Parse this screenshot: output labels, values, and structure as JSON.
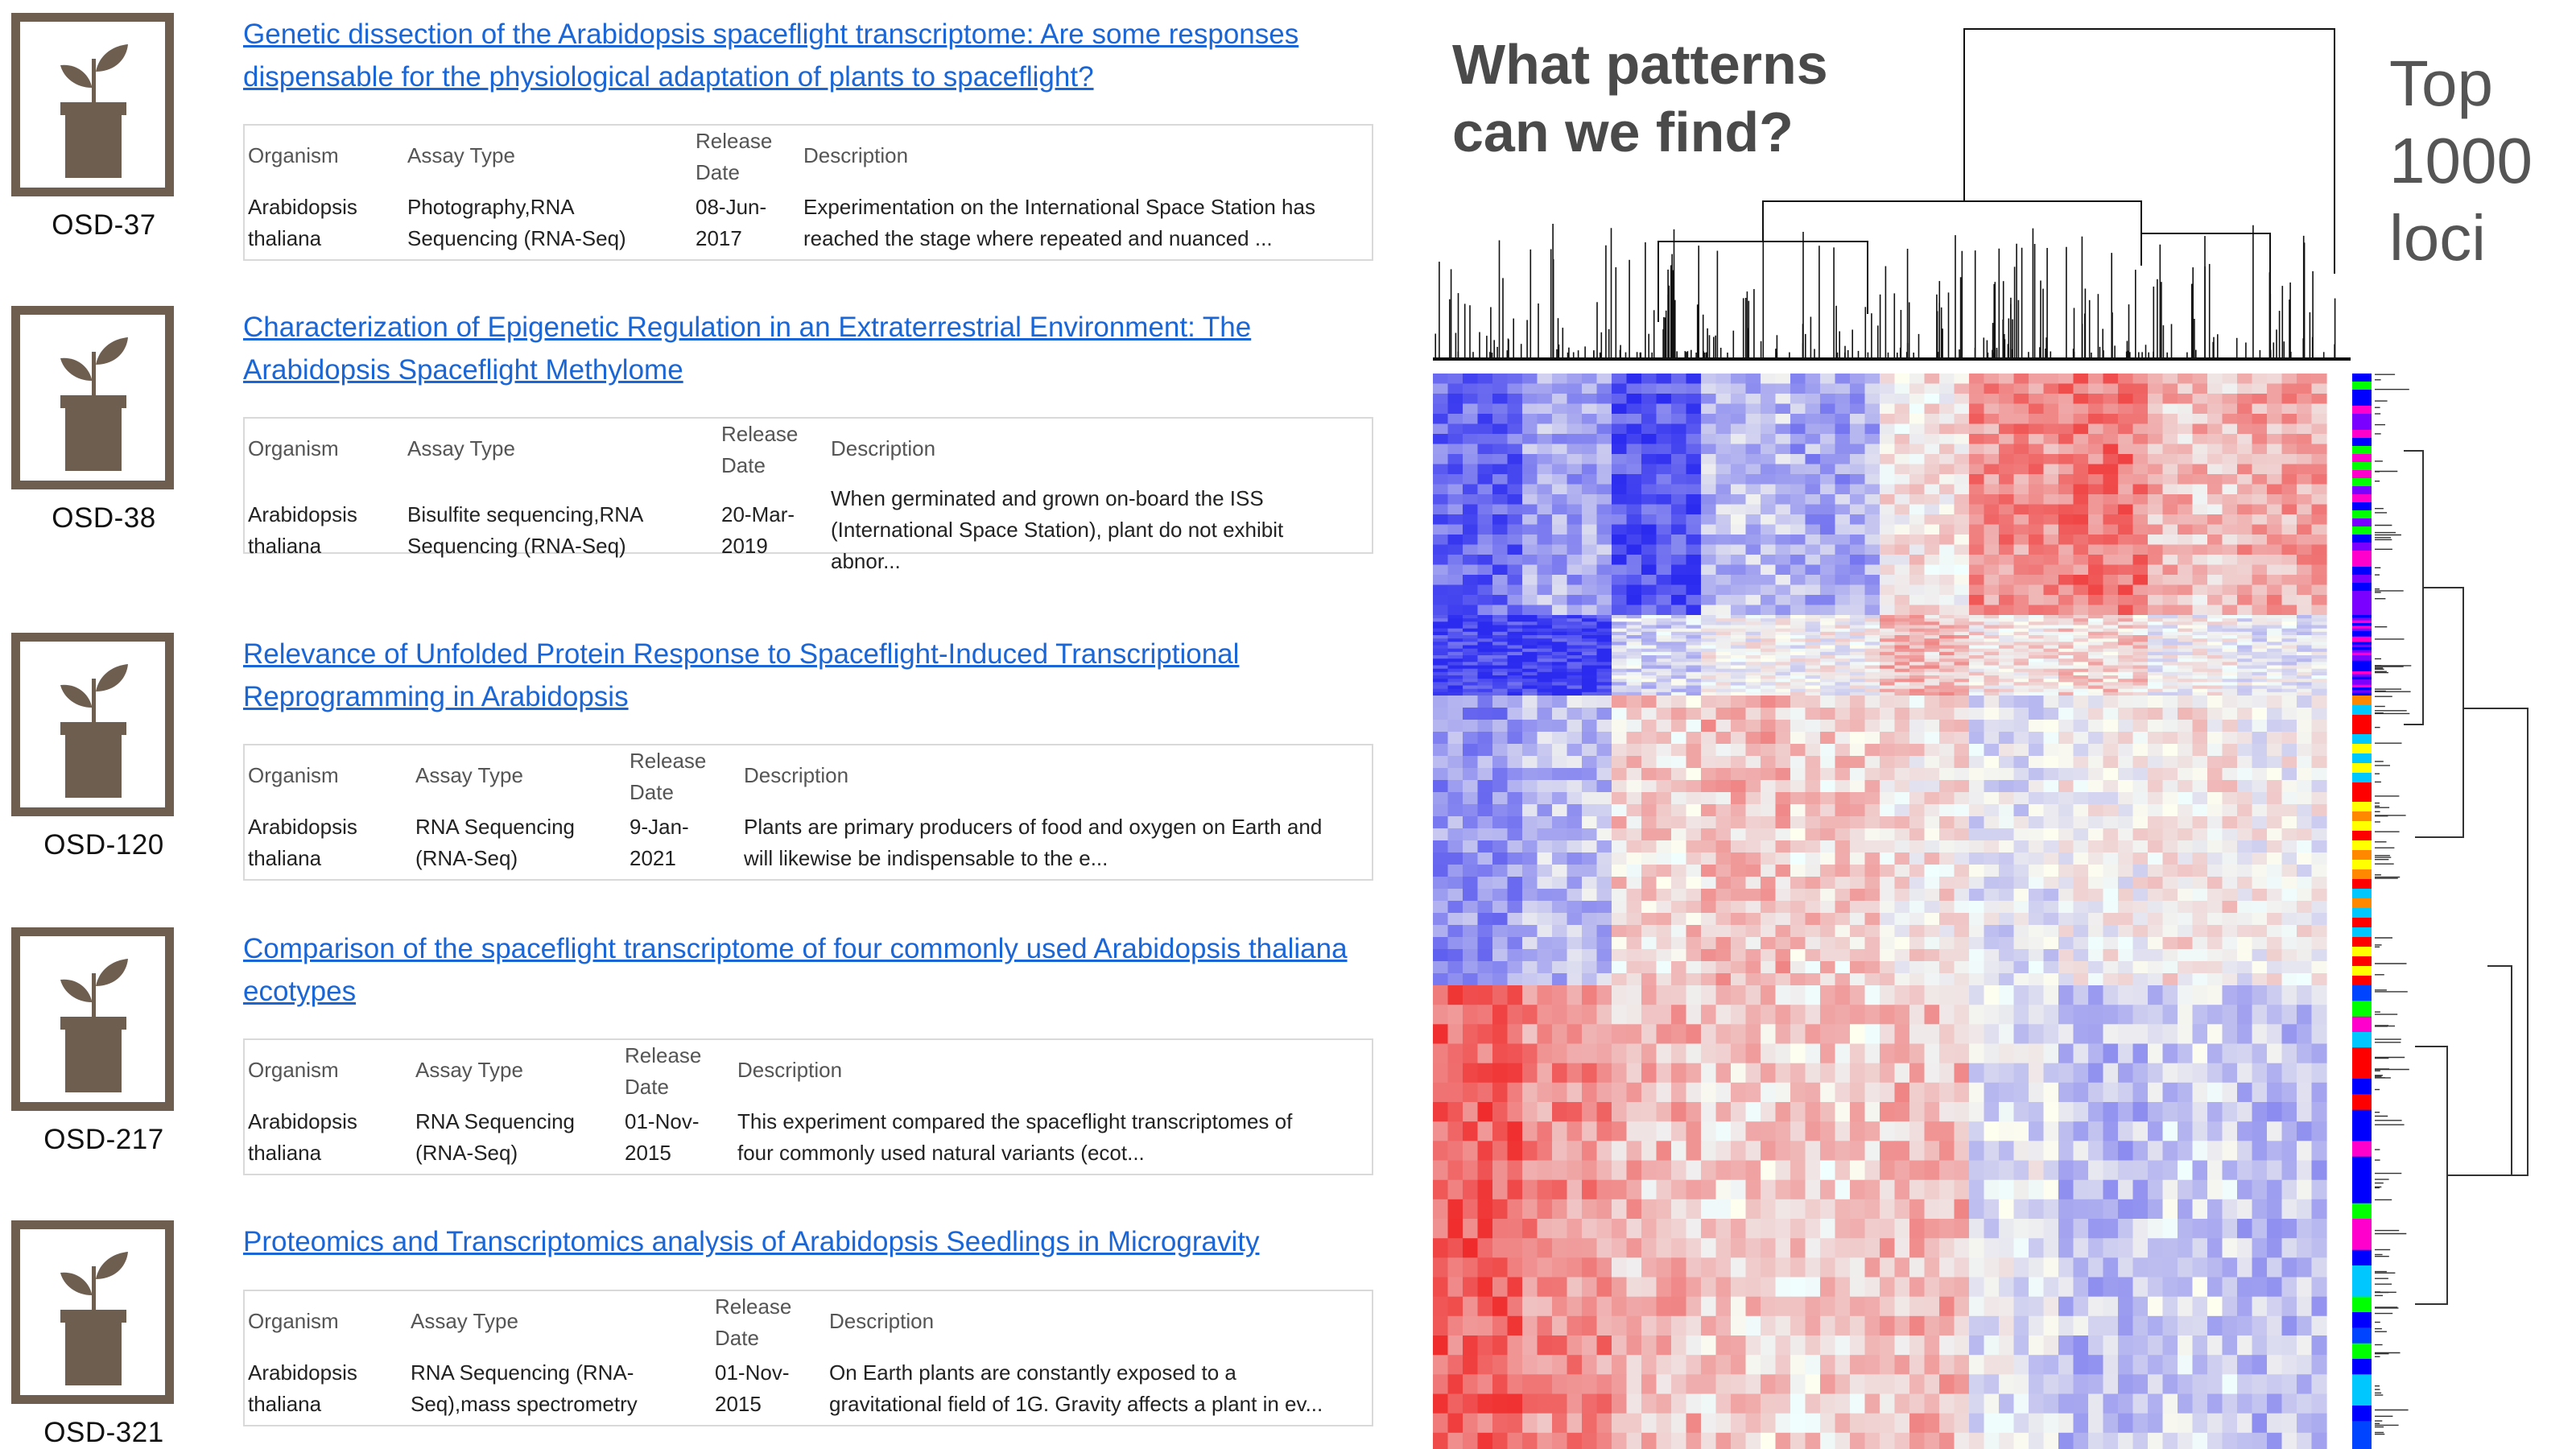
{
  "headers": {
    "organism": "Organism",
    "assay_type": "Assay Type",
    "release_line1": "Release",
    "release_line2": "Date",
    "description": "Description"
  },
  "datasets": [
    {
      "id": "OSD-37",
      "title": "Genetic dissection of the Arabidopsis spaceflight transcriptome: Are some responses dispensable for the physiological adaptation of plants to spaceflight?",
      "organism": [
        "Arabidopsis",
        "thaliana"
      ],
      "assay": [
        "Photography,RNA",
        "Sequencing (RNA-Seq)"
      ],
      "date": [
        "08-Jun-",
        "2017"
      ],
      "description": [
        "Experimentation on the International Space Station has",
        "reached the stage where repeated and nuanced ...",
        ""
      ]
    },
    {
      "id": "OSD-38",
      "title": "Characterization of Epigenetic Regulation in an Extraterrestrial Environment: The Arabidopsis Spaceflight Methylome",
      "organism": [
        "Arabidopsis",
        "thaliana"
      ],
      "assay": [
        "Bisulfite sequencing,RNA",
        "Sequencing (RNA-Seq)"
      ],
      "date": [
        "20-Mar-",
        "2019"
      ],
      "description": [
        "When germinated and grown on-board the ISS",
        "(International Space Station), plant do not exhibit",
        "abnor..."
      ]
    },
    {
      "id": "OSD-120",
      "title": "Relevance of Unfolded Protein Response to Spaceflight-Induced Transcriptional Reprogramming in Arabidopsis",
      "organism": [
        "Arabidopsis",
        "thaliana"
      ],
      "assay": [
        "RNA Sequencing",
        "(RNA-Seq)"
      ],
      "date": [
        "9-Jan-",
        "2021"
      ],
      "description": [
        "Plants are primary producers of food and oxygen on Earth and",
        "will likewise be indispensable to the e...",
        ""
      ]
    },
    {
      "id": "OSD-217",
      "title": "Comparison of the spaceflight transcriptome of four commonly used Arabidopsis thaliana ecotypes",
      "organism": [
        "Arabidopsis",
        "thaliana"
      ],
      "assay": [
        "RNA Sequencing",
        "(RNA-Seq)"
      ],
      "date": [
        "01-Nov-",
        "2015"
      ],
      "description": [
        "This experiment compared the spaceflight transcriptomes of",
        "four commonly used natural variants (ecot...",
        ""
      ]
    },
    {
      "id": "OSD-321",
      "title": "Proteomics and Transcriptomics analysis of Arabidopsis Seedlings in Microgravity",
      "organism": [
        "Arabidopsis",
        "thaliana"
      ],
      "assay": [
        "RNA Sequencing (RNA-",
        "Seq),mass spectrometry"
      ],
      "date": [
        "01-Nov-",
        "2015"
      ],
      "description": [
        "On Earth plants are constantly exposed to a",
        "gravitational field of 1G. Gravity affects a plant in ev...",
        ""
      ]
    }
  ],
  "figure": {
    "question": "What patterns can we find?",
    "annotation": [
      "Top",
      "1000",
      "loci"
    ]
  },
  "colors": {
    "link": "#1a66d6",
    "icon_brown": "#6e5e50",
    "heat_blue": "#2b2bf0",
    "heat_red": "#f02020",
    "question_gray": "#4a4a4a"
  },
  "icons": [
    "potted-plant-icon"
  ]
}
